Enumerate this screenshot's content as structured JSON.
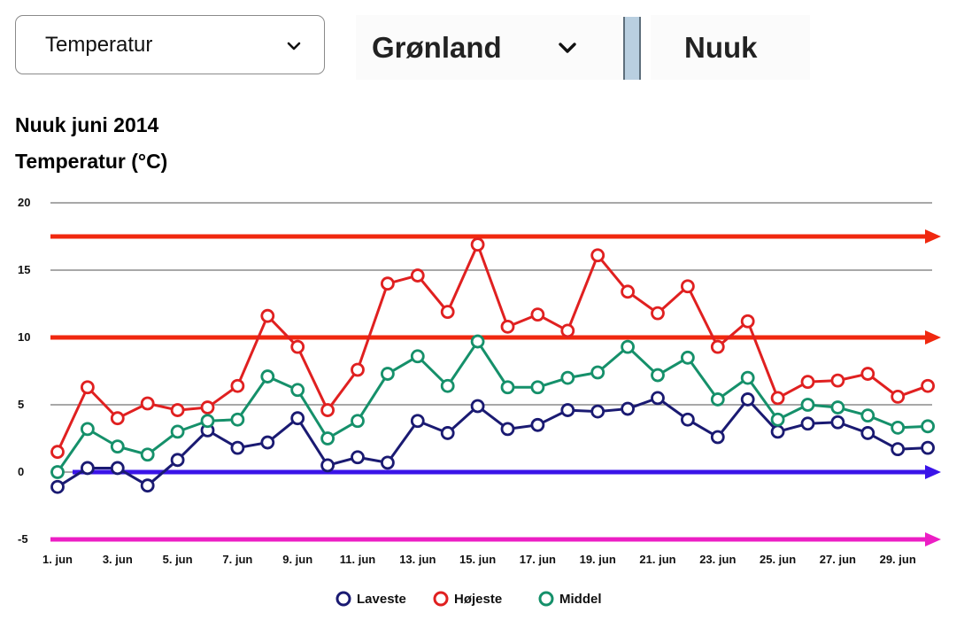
{
  "controls": {
    "measure_select": "Temperatur",
    "country_select": "Grønland",
    "city": "Nuuk"
  },
  "chart_data": {
    "type": "line",
    "title": "Nuuk juni 2014",
    "ylabel": "Temperatur (°C)",
    "ylim": [
      -5,
      20
    ],
    "yticks": [
      -5,
      0,
      5,
      10,
      15,
      20
    ],
    "grid": true,
    "legend": "bottom-center",
    "x": [
      1,
      2,
      3,
      4,
      5,
      6,
      7,
      8,
      9,
      10,
      11,
      12,
      13,
      14,
      15,
      16,
      17,
      18,
      19,
      20,
      21,
      22,
      23,
      24,
      25,
      26,
      27,
      28,
      29,
      30
    ],
    "x_tick_labels": [
      "1. jun",
      "3. jun",
      "5. jun",
      "7. jun",
      "9. jun",
      "11. jun",
      "13. jun",
      "15. jun",
      "17. jun",
      "19. jun",
      "21. jun",
      "23. jun",
      "25. jun",
      "27. jun",
      "29. jun"
    ],
    "series": [
      {
        "name": "Laveste",
        "color": "#1a1a72",
        "values": [
          -1.1,
          0.3,
          0.3,
          -1.0,
          0.9,
          3.1,
          1.8,
          2.2,
          4.0,
          0.5,
          1.1,
          0.7,
          3.8,
          2.9,
          4.9,
          3.2,
          3.5,
          4.6,
          4.5,
          4.7,
          5.5,
          3.9,
          2.6,
          5.4,
          3.0,
          3.6,
          3.7,
          2.9,
          1.7,
          1.8
        ]
      },
      {
        "name": "Højeste",
        "color": "#e02020",
        "values": [
          1.5,
          6.3,
          4.0,
          5.1,
          4.6,
          4.8,
          6.4,
          11.6,
          9.3,
          4.6,
          7.6,
          14.0,
          14.6,
          11.9,
          16.9,
          10.8,
          11.7,
          10.5,
          16.1,
          13.4,
          11.8,
          13.8,
          9.3,
          11.2,
          5.5,
          6.7,
          6.8,
          7.3,
          5.6,
          6.4
        ]
      },
      {
        "name": "Middel",
        "color": "#15906a",
        "values": [
          0.0,
          3.2,
          1.9,
          1.3,
          3.0,
          3.8,
          3.9,
          7.1,
          6.1,
          2.5,
          3.8,
          7.3,
          8.6,
          6.4,
          9.7,
          6.3,
          6.3,
          7.0,
          7.4,
          9.3,
          7.2,
          8.5,
          5.4,
          7.0,
          3.9,
          5.0,
          4.8,
          4.2,
          3.3,
          3.4
        ]
      }
    ],
    "annotations": [
      {
        "type": "arrow",
        "y": 17.5,
        "color": "#f0280f"
      },
      {
        "type": "arrow",
        "y": 10.0,
        "color": "#f0280f"
      },
      {
        "type": "arrow",
        "y": 0.0,
        "color": "#3a14e8"
      },
      {
        "type": "arrow",
        "y": -5.0,
        "color": "#ec1ec4"
      }
    ]
  }
}
